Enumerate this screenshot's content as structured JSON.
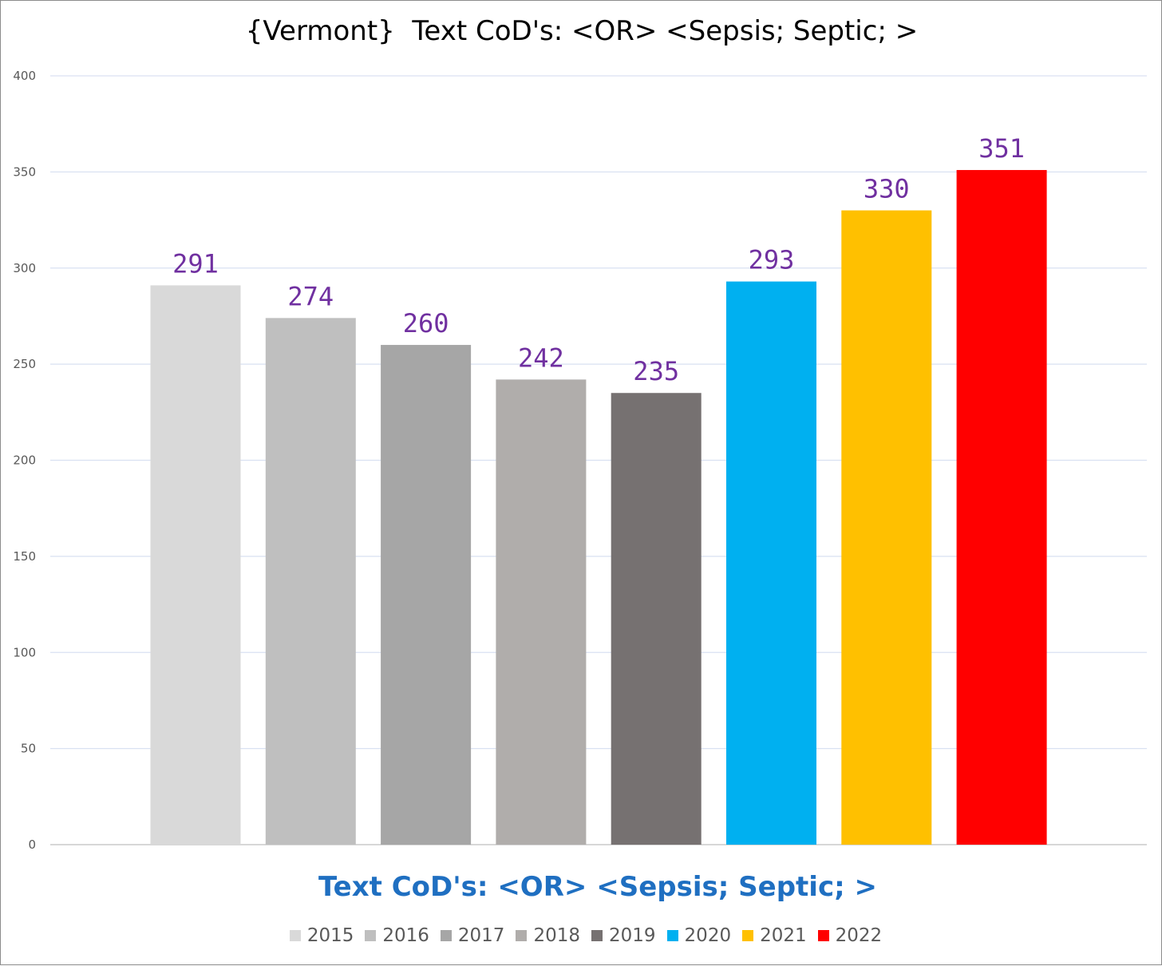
{
  "chart_data": {
    "type": "bar",
    "title": "{Vermont}  Text CoD's: <OR> <Sepsis; Septic; >",
    "xlabel": "Text CoD's: <OR> <Sepsis; Septic; >",
    "ylabel": "",
    "ylim": [
      0,
      400
    ],
    "yticks": [
      0,
      50,
      100,
      150,
      200,
      250,
      300,
      350,
      400
    ],
    "grid": true,
    "legend_position": "bottom",
    "categories": [
      "2015",
      "2016",
      "2017",
      "2018",
      "2019",
      "2020",
      "2021",
      "2022"
    ],
    "values": [
      291,
      274,
      260,
      242,
      235,
      293,
      330,
      351
    ],
    "colors": [
      "#d9d9d9",
      "#bfbfbf",
      "#a6a6a6",
      "#b0adab",
      "#767171",
      "#00b0f0",
      "#ffc000",
      "#ff0000"
    ],
    "data_label_color": "#7030a0",
    "gridline_color": "#d9e1f2"
  }
}
